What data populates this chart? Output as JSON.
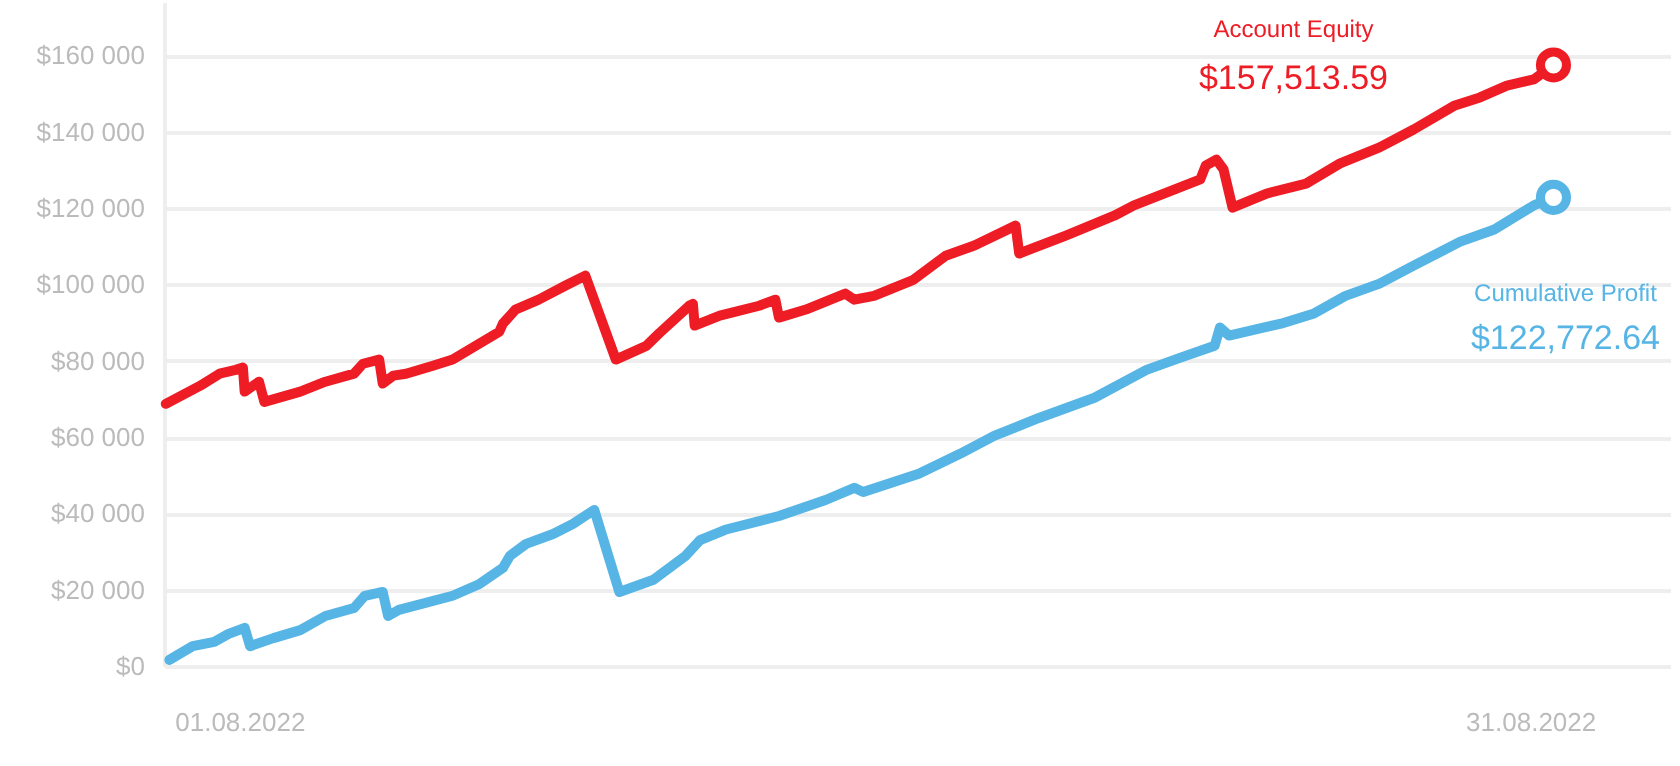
{
  "chart_data": {
    "type": "line",
    "xlim": [
      "2022-07-30T06:00",
      "2022-09-03T06:00"
    ],
    "xticks": [
      {
        "value": "2022-08-01",
        "label": "01.08.2022"
      },
      {
        "value": "2022-08-31",
        "label": "31.08.2022"
      }
    ],
    "ylim": [
      0,
      174000
    ],
    "yticks": [
      {
        "value": 0,
        "label": "$0"
      },
      {
        "value": 20000,
        "label": "$20 000"
      },
      {
        "value": 40000,
        "label": "$40 000"
      },
      {
        "value": 60000,
        "label": "$60 000"
      },
      {
        "value": 80000,
        "label": "$80 000"
      },
      {
        "value": 100000,
        "label": "$100 000"
      },
      {
        "value": 120000,
        "label": "$120 000"
      },
      {
        "value": 140000,
        "label": "$140 000"
      },
      {
        "value": 160000,
        "label": "$160 000"
      }
    ],
    "grid": "y",
    "line_style": "solid",
    "series": [
      {
        "name": "Account Equity",
        "color": "#ee1c25",
        "x": [
          "2022-07-30T07:00",
          "2022-07-31T02:00",
          "2022-07-31T13:00",
          "2022-07-31T22:00",
          "2022-08-01T02:00",
          "2022-08-01T03:00",
          "2022-08-01T11:00",
          "2022-08-01T14:00",
          "2022-08-02T10:00",
          "2022-08-03T00:00",
          "2022-08-03T16:00",
          "2022-08-03T21:00",
          "2022-08-04T06:00",
          "2022-08-04T08:00",
          "2022-08-04T14:00",
          "2022-08-04T21:00",
          "2022-08-05T12:00",
          "2022-08-05T23:00",
          "2022-08-06T14:00",
          "2022-08-07T01:00",
          "2022-08-07T03:00",
          "2022-08-07T10:00",
          "2022-08-07T23:00",
          "2022-08-08T14:00",
          "2022-08-09T01:00",
          "2022-08-09T18:00",
          "2022-08-10T11:00",
          "2022-08-10T18:00",
          "2022-08-11T11:00",
          "2022-08-11T13:00",
          "2022-08-11T14:00",
          "2022-08-12T04:00",
          "2022-08-13T02:00",
          "2022-08-13T11:00",
          "2022-08-13T13:00",
          "2022-08-14T04:00",
          "2022-08-15T02:00",
          "2022-08-15T07:00",
          "2022-08-15T18:00",
          "2022-08-16T16:00",
          "2022-08-17T10:00",
          "2022-08-18T02:00",
          "2022-08-19T01:00",
          "2022-08-19T03:00",
          "2022-08-20T05:00",
          "2022-08-21T08:00",
          "2022-08-21T19:00",
          "2022-08-23T08:00",
          "2022-08-23T11:00",
          "2022-08-23T17:00",
          "2022-08-23T21:00",
          "2022-08-24T02:00",
          "2022-08-24T21:00",
          "2022-08-25T19:00",
          "2022-08-26T14:00",
          "2022-08-27T12:00",
          "2022-08-28T07:00",
          "2022-08-29T06:00",
          "2022-08-29T20:00",
          "2022-08-30T11:00",
          "2022-08-31T02:00",
          "2022-08-31T13:00"
        ],
        "values": [
          68700,
          73400,
          76600,
          77600,
          78200,
          71900,
          74500,
          69200,
          71900,
          74500,
          76600,
          79200,
          80300,
          74000,
          76100,
          76600,
          78700,
          80300,
          84500,
          87600,
          89700,
          93400,
          96000,
          99700,
          102300,
          80300,
          83900,
          87100,
          94400,
          94900,
          89200,
          91800,
          94400,
          96000,
          91300,
          93400,
          97600,
          96000,
          97000,
          101200,
          107500,
          110200,
          115400,
          108100,
          112800,
          118000,
          120700,
          127500,
          131100,
          132700,
          130100,
          120100,
          123800,
          126400,
          131700,
          135900,
          140600,
          146900,
          149000,
          152100,
          153700,
          157500
        ]
      },
      {
        "name": "Cumulative Profit",
        "color": "#56b5e4",
        "x": [
          "2022-07-30T09:00",
          "2022-07-30T22:00",
          "2022-07-31T10:00",
          "2022-07-31T18:00",
          "2022-08-01T03:00",
          "2022-08-01T06:00",
          "2022-08-01T19:00",
          "2022-08-02T10:00",
          "2022-08-03T00:00",
          "2022-08-03T16:00",
          "2022-08-03T22:00",
          "2022-08-04T08:00",
          "2022-08-04T11:00",
          "2022-08-04T17:00",
          "2022-08-05T23:00",
          "2022-08-06T14:00",
          "2022-08-07T03:00",
          "2022-08-07T07:00",
          "2022-08-07T16:00",
          "2022-08-08T07:00",
          "2022-08-08T18:00",
          "2022-08-09T06:00",
          "2022-08-09T20:00",
          "2022-08-10T15:00",
          "2022-08-11T09:00",
          "2022-08-11T17:00",
          "2022-08-12T07:00",
          "2022-08-13T13:00",
          "2022-08-14T15:00",
          "2022-08-15T07:00",
          "2022-08-15T12:00",
          "2022-08-16T19:00",
          "2022-08-17T18:00",
          "2022-08-18T13:00",
          "2022-08-19T14:00",
          "2022-08-20T21:00",
          "2022-08-22T02:00",
          "2022-08-22T21:00",
          "2022-08-23T16:00",
          "2022-08-23T19:00",
          "2022-08-24T00:00",
          "2022-08-25T05:00",
          "2022-08-25T23:00",
          "2022-08-26T17:00",
          "2022-08-27T12:00",
          "2022-08-28T07:00",
          "2022-08-29T09:00",
          "2022-08-30T04:00",
          "2022-08-31T02:00",
          "2022-08-31T13:00"
        ],
        "values": [
          1600,
          5200,
          6300,
          8400,
          10000,
          5200,
          7300,
          9400,
          13100,
          15200,
          18400,
          19400,
          13100,
          14700,
          18400,
          21500,
          25700,
          28900,
          32000,
          34600,
          37200,
          40900,
          19400,
          22600,
          28900,
          33000,
          35700,
          39300,
          43500,
          46700,
          45600,
          50400,
          55600,
          60300,
          65000,
          70300,
          77600,
          80800,
          83900,
          88700,
          86600,
          89700,
          92300,
          97000,
          100200,
          104900,
          111200,
          114400,
          120700,
          122800
        ]
      }
    ],
    "annotations": [
      "$157,513.59",
      "$122,772.64"
    ]
  }
}
